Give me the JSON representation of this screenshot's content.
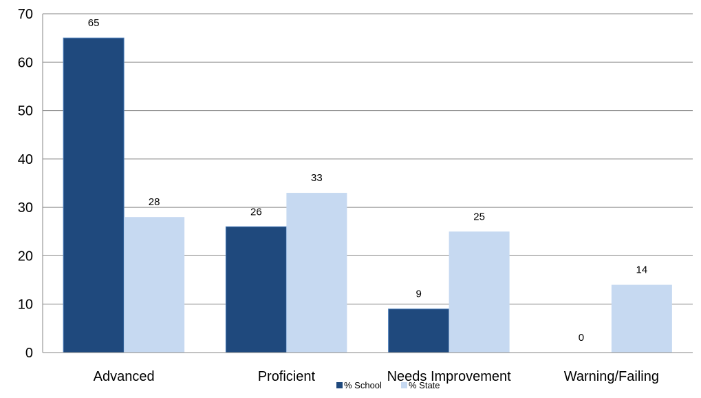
{
  "chart_data": {
    "type": "bar",
    "categories": [
      "Advanced",
      "Proficient",
      "Needs Improvement",
      "Warning/Failing"
    ],
    "series": [
      {
        "name": "% School",
        "values": [
          65,
          26,
          9,
          0
        ],
        "color": "#1F497D"
      },
      {
        "name": "% State",
        "values": [
          28,
          33,
          25,
          14
        ],
        "color": "#C6D9F1"
      }
    ],
    "ylim": [
      0,
      70
    ],
    "yticks": [
      0,
      10,
      20,
      30,
      40,
      50,
      60,
      70
    ],
    "grid": true,
    "legend": "bottom",
    "data_labels": true
  }
}
